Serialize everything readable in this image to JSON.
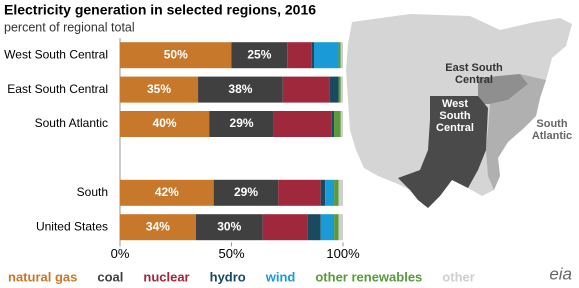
{
  "chart_data": {
    "type": "stacked-bar-horizontal",
    "title": "Electricity generation in selected regions, 2016",
    "subtitle": "percent of regional total",
    "categories": [
      "West South Central",
      "East South Central",
      "South Atlantic",
      null,
      "South",
      "United States"
    ],
    "series": [
      {
        "name": "natural gas",
        "color": "#c8782a",
        "values": [
          50,
          35,
          40,
          null,
          42,
          34
        ],
        "value_labels": [
          "50%",
          "35%",
          "40%",
          null,
          "42%",
          "34%"
        ]
      },
      {
        "name": "coal",
        "color": "#404040",
        "values": [
          25,
          38,
          29,
          null,
          29,
          30
        ],
        "value_labels": [
          "25%",
          "38%",
          "29%",
          null,
          "29%",
          "30%"
        ]
      },
      {
        "name": "nuclear",
        "color": "#a0283c",
        "values": [
          11,
          21,
          26,
          null,
          19,
          20
        ]
      },
      {
        "name": "hydro",
        "color": "#1a4a60",
        "values": [
          1,
          4,
          1,
          null,
          2,
          6
        ]
      },
      {
        "name": "wind",
        "color": "#1a9ad6",
        "values": [
          11,
          0,
          0,
          null,
          4,
          6
        ]
      },
      {
        "name": "other renewables",
        "color": "#5a9a3a",
        "values": [
          1,
          1,
          3,
          null,
          2,
          2
        ]
      },
      {
        "name": "other",
        "color": "#cfcfcf",
        "values": [
          1,
          1,
          1,
          null,
          2,
          2
        ]
      }
    ],
    "xlim": [
      0,
      100
    ],
    "xticks": [
      {
        "value": 0,
        "label": "0%"
      },
      {
        "value": 50,
        "label": "50%"
      },
      {
        "value": 100,
        "label": "100%"
      }
    ],
    "map_labels": [
      [
        "East South",
        "Central"
      ],
      [
        "West",
        "South",
        "Central"
      ],
      [
        "South",
        "Atlantic"
      ]
    ],
    "logo": "eia"
  }
}
